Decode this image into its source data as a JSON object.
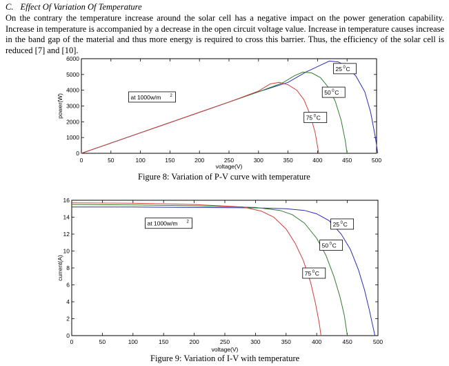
{
  "section": {
    "number": "C.",
    "title": "Effect Of Variation Of Temperature",
    "paragraph": "On the contrary the temperature increase around the solar cell has a negative impact on the power generation capability. Increase in temperature is accompanied by a decrease in the open circuit voltage value. Increase in temperature causes increase in the band gap of the material and thus more energy is required to cross this barrier. Thus, the efficiency of the solar cell is reduced [7] and [10]."
  },
  "colors": {
    "25C": "#2a2ab4",
    "50C": "#2e7d2e",
    "75C": "#d23c3c"
  },
  "chart_data": [
    {
      "type": "line",
      "caption": "Figure 8: Variation of P-V curve with temperature",
      "xlabel": "voltage(V)",
      "ylabel": "power(W)",
      "xlim": [
        0,
        500
      ],
      "ylim": [
        0,
        6000
      ],
      "xticks": [
        0,
        50,
        100,
        150,
        200,
        250,
        300,
        350,
        400,
        450,
        500
      ],
      "yticks": [
        0,
        1000,
        2000,
        3000,
        4000,
        5000,
        6000
      ],
      "annotation": {
        "text": "at 1000w/m",
        "sup": "2",
        "at": [
          80,
          3900
        ]
      },
      "series": [
        {
          "name": "25",
          "unit": "C",
          "color_key": "25C",
          "label_at": [
            427,
            5700
          ],
          "points": [
            [
              0,
              0
            ],
            [
              50,
              650
            ],
            [
              100,
              1300
            ],
            [
              150,
              1950
            ],
            [
              200,
              2600
            ],
            [
              250,
              3250
            ],
            [
              300,
              3900
            ],
            [
              350,
              4500
            ],
            [
              380,
              5150
            ],
            [
              400,
              5500
            ],
            [
              420,
              5850
            ],
            [
              435,
              5800
            ],
            [
              450,
              5500
            ],
            [
              465,
              4900
            ],
            [
              480,
              3900
            ],
            [
              490,
              2600
            ],
            [
              498,
              1000
            ],
            [
              502,
              0
            ]
          ]
        },
        {
          "name": "50",
          "unit": "C",
          "color_key": "50C",
          "label_at": [
            408,
            4200
          ],
          "points": [
            [
              0,
              0
            ],
            [
              50,
              650
            ],
            [
              100,
              1300
            ],
            [
              150,
              1950
            ],
            [
              200,
              2600
            ],
            [
              250,
              3250
            ],
            [
              300,
              3900
            ],
            [
              340,
              4450
            ],
            [
              360,
              4900
            ],
            [
              375,
              5150
            ],
            [
              390,
              5100
            ],
            [
              405,
              4800
            ],
            [
              418,
              4200
            ],
            [
              430,
              3300
            ],
            [
              440,
              2100
            ],
            [
              447,
              800
            ],
            [
              450,
              0
            ]
          ]
        },
        {
          "name": "75",
          "unit": "C",
          "color_key": "75C",
          "label_at": [
            377,
            2600
          ],
          "points": [
            [
              0,
              0
            ],
            [
              50,
              650
            ],
            [
              100,
              1300
            ],
            [
              150,
              1950
            ],
            [
              200,
              2600
            ],
            [
              250,
              3250
            ],
            [
              300,
              3950
            ],
            [
              320,
              4400
            ],
            [
              335,
              4500
            ],
            [
              350,
              4350
            ],
            [
              365,
              4000
            ],
            [
              377,
              3400
            ],
            [
              388,
              2400
            ],
            [
              396,
              1300
            ],
            [
              402,
              0
            ]
          ]
        }
      ]
    },
    {
      "type": "line",
      "caption": "Figure 9: Variation of I-V with temperature",
      "xlabel": "voltage(V)",
      "ylabel": "current(A)",
      "xlim": [
        0,
        500
      ],
      "ylim": [
        0,
        16
      ],
      "xticks": [
        0,
        50,
        100,
        150,
        200,
        250,
        300,
        350,
        400,
        450,
        500
      ],
      "yticks": [
        0,
        2,
        4,
        6,
        8,
        10,
        12,
        14,
        16
      ],
      "annotation": {
        "text": "at 1000w/m",
        "sup": "2",
        "at": [
          120,
          13.9
        ]
      },
      "series": [
        {
          "name": "25",
          "unit": "C",
          "color_key": "25C",
          "label_at": [
            423,
            13.8
          ],
          "points": [
            [
              0,
              15.2
            ],
            [
              100,
              15.2
            ],
            [
              200,
              15.15
            ],
            [
              300,
              15.1
            ],
            [
              350,
              15.0
            ],
            [
              380,
              14.8
            ],
            [
              400,
              14.4
            ],
            [
              420,
              13.6
            ],
            [
              440,
              12.0
            ],
            [
              455,
              10.2
            ],
            [
              468,
              7.8
            ],
            [
              478,
              5.4
            ],
            [
              486,
              3.0
            ],
            [
              492,
              1.0
            ],
            [
              495,
              0
            ]
          ]
        },
        {
          "name": "50",
          "unit": "C",
          "color_key": "50C",
          "label_at": [
            405,
            11.3
          ],
          "points": [
            [
              0,
              15.5
            ],
            [
              100,
              15.45
            ],
            [
              200,
              15.35
            ],
            [
              300,
              15.15
            ],
            [
              340,
              14.8
            ],
            [
              360,
              14.3
            ],
            [
              380,
              13.3
            ],
            [
              400,
              11.5
            ],
            [
              415,
              9.5
            ],
            [
              428,
              7.0
            ],
            [
              438,
              4.6
            ],
            [
              445,
              2.4
            ],
            [
              450,
              0
            ]
          ]
        },
        {
          "name": "75",
          "unit": "C",
          "color_key": "75C",
          "label_at": [
            377,
            8.0
          ],
          "points": [
            [
              0,
              15.7
            ],
            [
              100,
              15.65
            ],
            [
              200,
              15.5
            ],
            [
              280,
              15.2
            ],
            [
              310,
              14.7
            ],
            [
              330,
              14.0
            ],
            [
              350,
              12.6
            ],
            [
              365,
              10.9
            ],
            [
              378,
              8.9
            ],
            [
              390,
              6.3
            ],
            [
              398,
              3.8
            ],
            [
              404,
              1.5
            ],
            [
              407,
              0
            ]
          ]
        }
      ]
    }
  ]
}
